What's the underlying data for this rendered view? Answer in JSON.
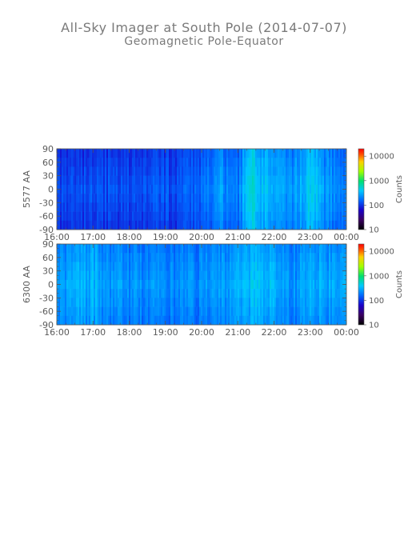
{
  "page": {
    "title": "All-Sky Imager at South Pole (2014-07-07)",
    "subtitle": "Geomagnetic Pole-Equator"
  },
  "chart_data": [
    {
      "type": "heatmap",
      "ylabel": "5577 AA",
      "colorbar_label": "Counts",
      "colorbar_ticks": [
        "10000",
        "1000",
        "100",
        "10"
      ],
      "colorbar_range": [
        10,
        20000
      ],
      "colorbar_scale": "log",
      "x_ticks": [
        "16:00",
        "17:00",
        "18:00",
        "19:00",
        "20:00",
        "21:00",
        "22:00",
        "23:00",
        "00:00"
      ],
      "y_ticks": [
        "90",
        "60",
        "30",
        "0",
        "-30",
        "-60",
        "-90"
      ],
      "ylim": [
        -90,
        90
      ],
      "xlim": [
        "16:00",
        "00:00"
      ],
      "intensity_profile": {
        "hours": [
          16.0,
          17.0,
          18.0,
          19.0,
          20.0,
          20.5,
          21.0,
          21.4,
          21.8,
          22.3,
          22.7,
          23.0,
          23.4,
          24.0
        ],
        "counts": [
          120,
          130,
          125,
          135,
          150,
          260,
          180,
          520,
          330,
          240,
          290,
          450,
          260,
          200
        ]
      }
    },
    {
      "type": "heatmap",
      "ylabel": "6300 AA",
      "colorbar_label": "Counts",
      "colorbar_ticks": [
        "10000",
        "1000",
        "100",
        "10"
      ],
      "colorbar_range": [
        10,
        20000
      ],
      "colorbar_scale": "log",
      "x_ticks": [
        "16:00",
        "17:00",
        "18:00",
        "19:00",
        "20:00",
        "21:00",
        "22:00",
        "23:00",
        "00:00"
      ],
      "y_ticks": [
        "90",
        "60",
        "30",
        "0",
        "-30",
        "-60",
        "-90"
      ],
      "ylim": [
        -90,
        90
      ],
      "xlim": [
        "16:00",
        "00:00"
      ],
      "intensity_profile": {
        "hours": [
          16.0,
          17.0,
          17.4,
          18.0,
          19.0,
          20.0,
          21.0,
          21.5,
          22.0,
          22.5,
          23.0,
          24.0
        ],
        "counts": [
          260,
          340,
          260,
          240,
          230,
          230,
          300,
          380,
          330,
          230,
          320,
          250
        ]
      }
    }
  ]
}
